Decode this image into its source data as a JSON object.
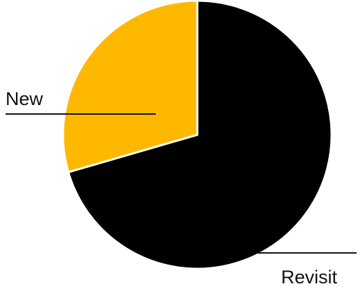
{
  "chart_data": {
    "type": "pie",
    "start_angle_deg": 0,
    "direction": "clockwise",
    "slices": [
      {
        "label": "Revisit",
        "value": 70.5,
        "color": "#000000"
      },
      {
        "label": "New",
        "value": 29.5,
        "color": "#FFB800"
      }
    ],
    "title": "",
    "legend": "none",
    "slice_border_color": "#FFFFFF"
  }
}
